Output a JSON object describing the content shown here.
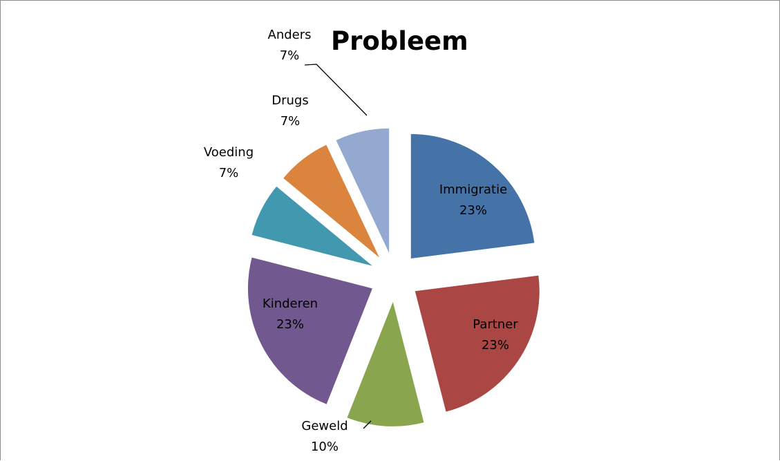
{
  "chart_data": {
    "type": "pie",
    "title": "Probleem",
    "legend": "none",
    "slices": [
      {
        "label": "Immigratie",
        "value": 23,
        "value_label": "23%",
        "color": "#4572a7"
      },
      {
        "label": "Partner",
        "value": 23,
        "value_label": "23%",
        "color": "#aa4643"
      },
      {
        "label": "Geweld",
        "value": 10,
        "value_label": "10%",
        "color": "#89a54e"
      },
      {
        "label": "Kinderen",
        "value": 23,
        "value_label": "23%",
        "color": "#71588f"
      },
      {
        "label": "Voeding",
        "value": 7,
        "value_label": "7%",
        "color": "#4198af"
      },
      {
        "label": "Drugs",
        "value": 7,
        "value_label": "7%",
        "color": "#db843d"
      },
      {
        "label": "Anders",
        "value": 7,
        "value_label": "7%",
        "color": "#93a9cf"
      }
    ]
  }
}
